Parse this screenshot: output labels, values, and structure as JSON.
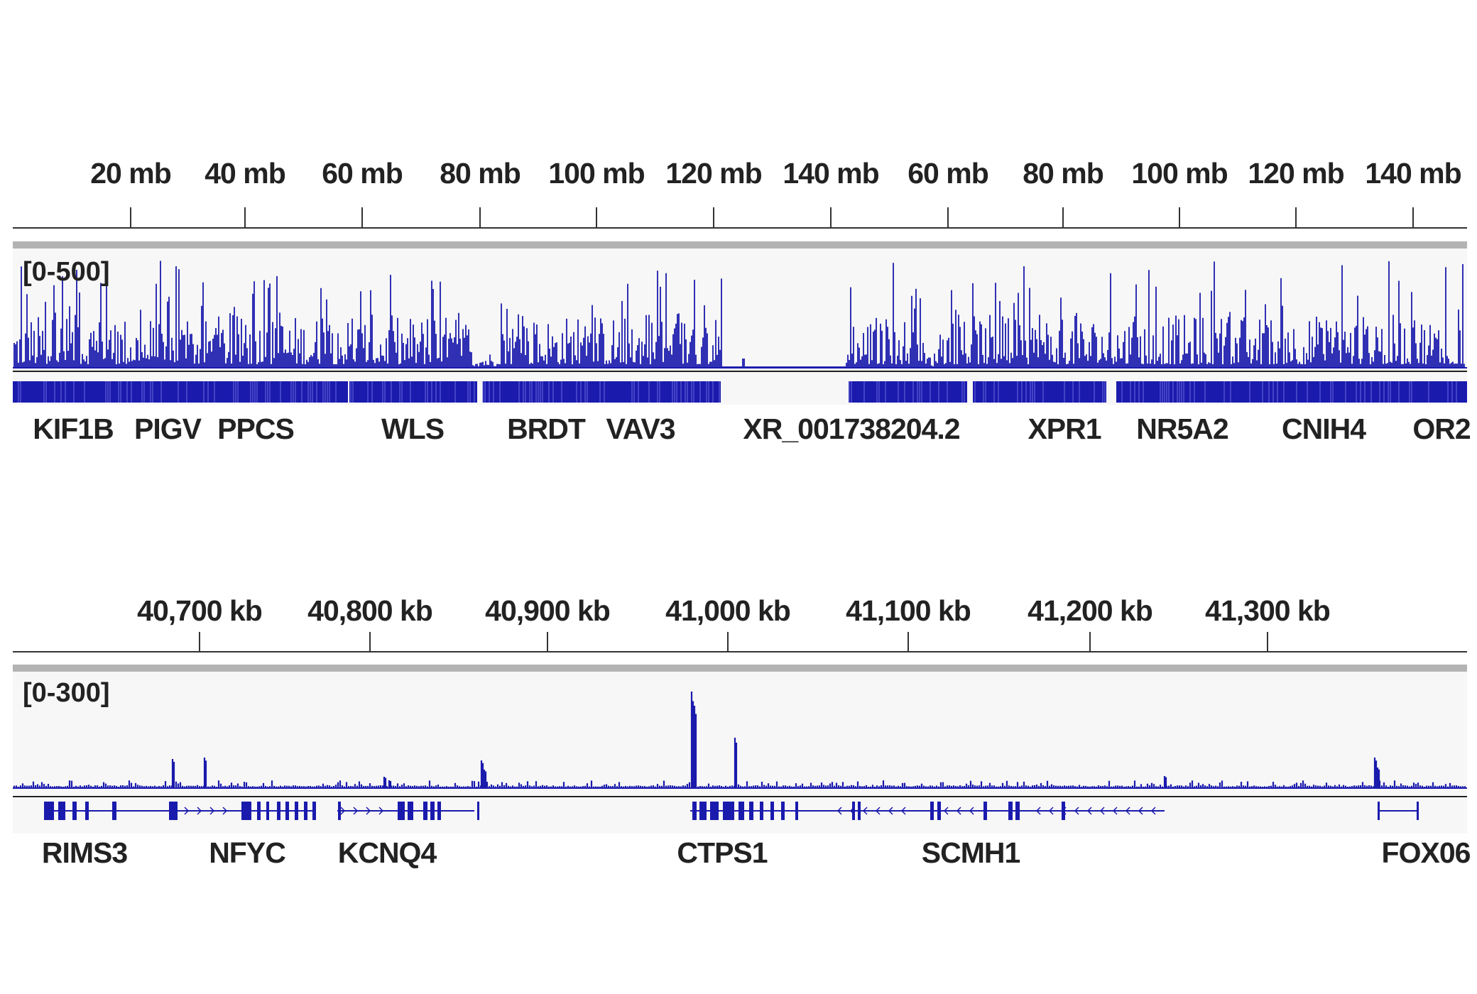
{
  "colors": {
    "signal": "#1a1aad",
    "track_bg": "#f7f7f7",
    "separator": "#b3b3b3",
    "axis": "#333333",
    "text": "#222222"
  },
  "panels": [
    {
      "id": "top",
      "ruler": {
        "ticks": [
          "20 mb",
          "40 mb",
          "60 mb",
          "80 mb",
          "100 mb",
          "120 mb",
          "140 mb",
          "60 mb",
          "80 mb",
          "100 mb",
          "120 mb",
          "140 mb"
        ]
      },
      "track": {
        "data_range": "[0-500]"
      },
      "genes": [
        "KIF1B",
        "PIGV",
        "PPCS",
        "WLS",
        "BRDT",
        "VAV3",
        "XR_001738204.2",
        "XPR1",
        "NR5A2",
        "CNIH4",
        "OR2"
      ]
    },
    {
      "id": "bottom",
      "ruler": {
        "ticks": [
          "40,700 kb",
          "40,800 kb",
          "40,900 kb",
          "41,000 kb",
          "41,100 kb",
          "41,200 kb",
          "41,300 kb"
        ]
      },
      "track": {
        "data_range": "[0-300]"
      },
      "genes": [
        "RIMS3",
        "NFYC",
        "KCNQ4",
        "CTPS1",
        "SCMH1",
        "FOX06"
      ]
    }
  ]
}
